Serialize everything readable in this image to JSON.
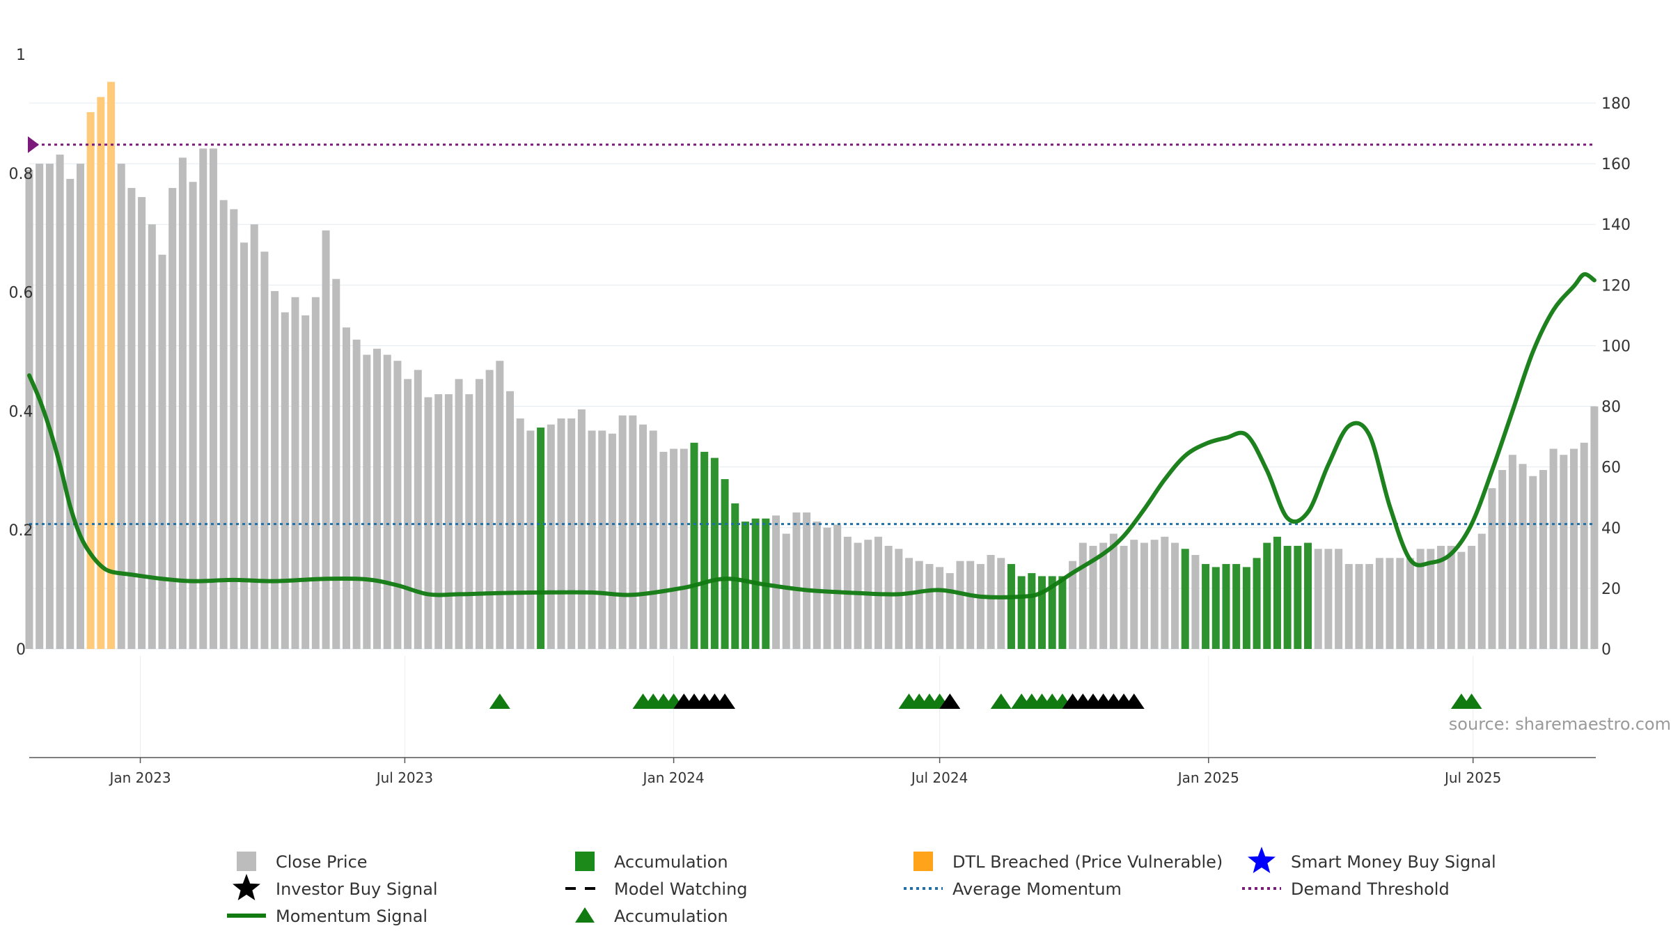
{
  "chart_data": {
    "type": "bar",
    "source_text": "source: sharemaestro.com",
    "left_axis": {
      "ticks": [
        "0",
        "0.2",
        "0.4",
        "0.6",
        "0.8",
        "1"
      ],
      "ylim": [
        0,
        1
      ]
    },
    "right_axis": {
      "ticks": [
        "0",
        "20",
        "40",
        "60",
        "80",
        "100",
        "120",
        "140",
        "160",
        "180"
      ],
      "ylim": [
        0,
        180
      ]
    },
    "x_ticks": [
      "Jan 2023",
      "Jul 2023",
      "Jan 2024",
      "Jul 2024",
      "Jan 2025",
      "Jul 2025"
    ],
    "x_range": [
      "2022-10-17",
      "2025-09-23"
    ],
    "tick_dates": [
      "2023-01-01",
      "2023-07-01",
      "2024-01-01",
      "2024-07-01",
      "2025-01-01",
      "2025-07-01"
    ],
    "first_bar_date": "2022-10-17",
    "bar_interval_days": 7,
    "close_price": [
      158,
      160,
      160,
      163,
      155,
      160,
      177,
      182,
      187,
      160,
      152,
      149,
      140,
      130,
      152,
      162,
      154,
      165,
      165,
      148,
      145,
      134,
      140,
      131,
      118,
      111,
      116,
      110,
      116,
      138,
      122,
      106,
      102,
      97,
      99,
      97,
      95,
      89,
      92,
      83,
      84,
      84,
      89,
      84,
      89,
      92,
      95,
      85,
      76,
      72,
      73,
      74,
      76,
      76,
      79,
      72,
      72,
      71,
      77,
      77,
      74,
      72,
      65,
      66,
      66,
      68,
      65,
      63,
      56,
      48,
      42,
      43,
      43,
      44,
      38,
      45,
      45,
      42,
      40,
      41,
      37,
      35,
      36,
      37,
      34,
      33,
      30,
      29,
      28,
      27,
      25,
      29,
      29,
      28,
      31,
      30,
      28,
      24,
      25,
      24,
      24,
      24,
      29,
      35,
      34,
      35,
      38,
      34,
      36,
      35,
      36,
      37,
      35,
      33,
      31,
      28,
      27,
      28,
      28,
      27,
      30,
      35,
      37,
      34,
      34,
      35,
      33,
      33,
      33,
      28,
      28,
      28,
      30,
      30,
      30,
      30,
      33,
      33,
      34,
      34,
      32,
      34,
      38,
      53,
      59,
      64,
      61,
      57,
      59,
      66,
      64,
      66,
      68,
      80
    ],
    "bar_category": [
      "p",
      "p",
      "p",
      "p",
      "p",
      "p",
      "d",
      "d",
      "d",
      "p",
      "p",
      "p",
      "p",
      "p",
      "p",
      "p",
      "p",
      "p",
      "p",
      "p",
      "p",
      "p",
      "p",
      "p",
      "p",
      "p",
      "p",
      "p",
      "p",
      "p",
      "p",
      "p",
      "p",
      "p",
      "p",
      "p",
      "p",
      "p",
      "p",
      "p",
      "p",
      "p",
      "p",
      "p",
      "p",
      "p",
      "p",
      "p",
      "p",
      "p",
      "a",
      "p",
      "p",
      "p",
      "p",
      "p",
      "p",
      "p",
      "p",
      "p",
      "p",
      "p",
      "p",
      "p",
      "p",
      "a",
      "a",
      "a",
      "a",
      "a",
      "a",
      "a",
      "a",
      "p",
      "p",
      "p",
      "p",
      "p",
      "p",
      "p",
      "p",
      "p",
      "p",
      "p",
      "p",
      "p",
      "p",
      "p",
      "p",
      "p",
      "p",
      "p",
      "p",
      "p",
      "p",
      "p",
      "a",
      "a",
      "a",
      "a",
      "a",
      "a",
      "p",
      "p",
      "p",
      "p",
      "p",
      "p",
      "p",
      "p",
      "p",
      "p",
      "p",
      "a",
      "p",
      "a",
      "a",
      "a",
      "a",
      "a",
      "a",
      "a",
      "a",
      "a",
      "a",
      "a",
      "p",
      "p",
      "p",
      "p",
      "p",
      "p",
      "p",
      "p",
      "p",
      "p",
      "p",
      "p",
      "p",
      "p",
      "p",
      "p",
      "p",
      "p",
      "p",
      "p",
      "p",
      "p",
      "p",
      "p",
      "p",
      "p",
      "p",
      "p",
      "p",
      "a",
      "a",
      "p",
      "p",
      "p",
      "p",
      "p",
      "p",
      "p",
      "p",
      "p",
      "p",
      "p",
      "p",
      "p",
      "p",
      "p"
    ],
    "momentum": [
      [
        "2022-10-17",
        0.46
      ],
      [
        "2022-10-24",
        0.42
      ],
      [
        "2022-10-31",
        0.37
      ],
      [
        "2022-11-07",
        0.31
      ],
      [
        "2022-11-14",
        0.24
      ],
      [
        "2022-11-21",
        0.19
      ],
      [
        "2022-11-28",
        0.16
      ],
      [
        "2022-12-05",
        0.14
      ],
      [
        "2022-12-12",
        0.13
      ],
      [
        "2022-12-26",
        0.125
      ],
      [
        "2023-01-16",
        0.118
      ],
      [
        "2023-02-06",
        0.114
      ],
      [
        "2023-03-06",
        0.116
      ],
      [
        "2023-04-03",
        0.114
      ],
      [
        "2023-05-08",
        0.118
      ],
      [
        "2023-06-05",
        0.117
      ],
      [
        "2023-06-26",
        0.107
      ],
      [
        "2023-07-17",
        0.092
      ],
      [
        "2023-08-07",
        0.092
      ],
      [
        "2023-09-04",
        0.094
      ],
      [
        "2023-10-02",
        0.095
      ],
      [
        "2023-11-06",
        0.095
      ],
      [
        "2023-12-04",
        0.091
      ],
      [
        "2024-01-08",
        0.103
      ],
      [
        "2024-02-05",
        0.118
      ],
      [
        "2024-03-04",
        0.108
      ],
      [
        "2024-04-01",
        0.099
      ],
      [
        "2024-05-06",
        0.094
      ],
      [
        "2024-06-03",
        0.092
      ],
      [
        "2024-07-01",
        0.099
      ],
      [
        "2024-07-29",
        0.088
      ],
      [
        "2024-08-26",
        0.088
      ],
      [
        "2024-09-09",
        0.095
      ],
      [
        "2024-09-30",
        0.128
      ],
      [
        "2024-10-21",
        0.16
      ],
      [
        "2024-11-04",
        0.19
      ],
      [
        "2024-11-18",
        0.235
      ],
      [
        "2024-12-02",
        0.285
      ],
      [
        "2024-12-16",
        0.325
      ],
      [
        "2024-12-30",
        0.345
      ],
      [
        "2025-01-13",
        0.355
      ],
      [
        "2025-01-27",
        0.36
      ],
      [
        "2025-02-10",
        0.3
      ],
      [
        "2025-02-24",
        0.22
      ],
      [
        "2025-03-10",
        0.23
      ],
      [
        "2025-03-24",
        0.31
      ],
      [
        "2025-04-07",
        0.375
      ],
      [
        "2025-04-21",
        0.36
      ],
      [
        "2025-05-05",
        0.24
      ],
      [
        "2025-05-19",
        0.15
      ],
      [
        "2025-06-02",
        0.145
      ],
      [
        "2025-06-16",
        0.16
      ],
      [
        "2025-06-30",
        0.21
      ],
      [
        "2025-07-14",
        0.3
      ],
      [
        "2025-07-28",
        0.4
      ],
      [
        "2025-08-11",
        0.5
      ],
      [
        "2025-08-25",
        0.57
      ],
      [
        "2025-09-08",
        0.61
      ],
      [
        "2025-09-15",
        0.63
      ],
      [
        "2025-09-22",
        0.62
      ]
    ],
    "demand_threshold": 0.848,
    "average_momentum": 0.21,
    "green_markers": [
      "2023-09-04",
      "2023-12-11",
      "2023-12-18",
      "2023-12-25",
      "2024-01-01",
      "2024-06-10",
      "2024-06-17",
      "2024-06-24",
      "2024-07-01",
      "2024-08-12",
      "2024-08-26",
      "2024-09-02",
      "2024-09-09",
      "2024-09-16",
      "2024-09-23",
      "2025-06-23",
      "2025-06-30"
    ],
    "black_markers": [
      "2024-01-08",
      "2024-01-15",
      "2024-01-22",
      "2024-01-29",
      "2024-02-05",
      "2024-07-08",
      "2024-09-30",
      "2024-10-07",
      "2024-10-14",
      "2024-10-21",
      "2024-10-28",
      "2024-11-04",
      "2024-11-11"
    ],
    "legend": [
      {
        "label": "Close Price",
        "symbol": "square",
        "color": "#bcbcbc"
      },
      {
        "label": "Accumulation",
        "symbol": "square",
        "color": "#1b8a1b"
      },
      {
        "label": "DTL Breached (Price Vulnerable)",
        "symbol": "square",
        "color": "#ffa31a"
      },
      {
        "label": "Smart Money Buy Signal",
        "symbol": "star",
        "color": "#0000ff"
      },
      {
        "label": "Investor Buy Signal",
        "symbol": "star",
        "color": "#000000"
      },
      {
        "label": "Model Watching",
        "symbol": "dash",
        "color": "#000000"
      },
      {
        "label": "Average Momentum",
        "symbol": "dot-line",
        "color": "#1f6fa8"
      },
      {
        "label": "Demand Threshold",
        "symbol": "dot-line",
        "color": "#7b1a7b"
      },
      {
        "label": "Momentum Signal",
        "symbol": "line",
        "color": "#117a11"
      },
      {
        "label": "Accumulation",
        "symbol": "triangle",
        "color": "#117a11"
      }
    ],
    "colors": {
      "price": "#bcbcbc",
      "accumulation": "#2e922e",
      "dtl": "#ffcb7a",
      "momentum": "#117a11",
      "average": "#1f6fa8",
      "threshold": "#7b1a7b"
    }
  }
}
